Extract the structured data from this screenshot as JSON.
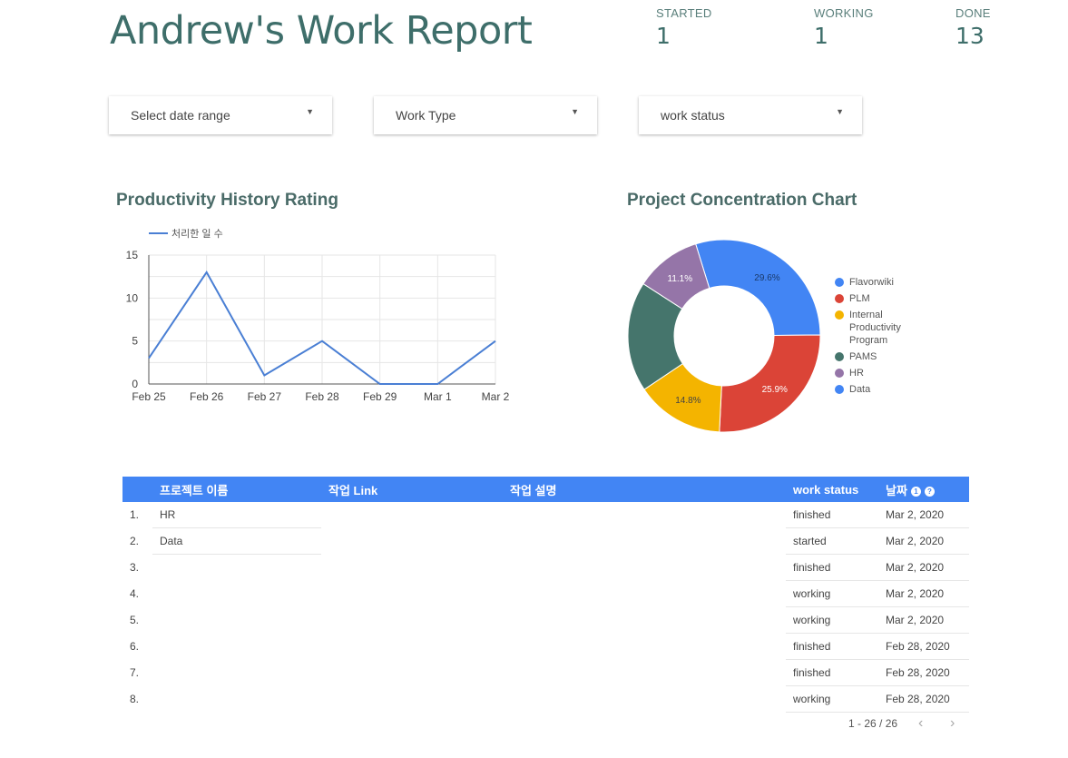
{
  "header": {
    "title": "Andrew's Work Report"
  },
  "kpis": [
    {
      "label": "STARTED",
      "value": "1"
    },
    {
      "label": "WORKING",
      "value": "1"
    },
    {
      "label": "DONE",
      "value": "13"
    }
  ],
  "filters": {
    "date_range": "Select date range",
    "work_type": "Work Type",
    "work_status": "work status",
    "caret": "▼"
  },
  "line_section": {
    "title": "Productivity History Rating"
  },
  "pie_section": {
    "title": "Project Concentration Chart"
  },
  "chart_data": [
    {
      "type": "line",
      "title": "Productivity History Rating",
      "x": [
        "Feb 25",
        "Feb 26",
        "Feb 27",
        "Feb 28",
        "Feb 29",
        "Mar 1",
        "Mar 2"
      ],
      "series": [
        {
          "name": "처리한 일 수",
          "values": [
            3,
            13,
            1,
            5,
            0,
            0,
            5
          ],
          "color": "#4a7fd4"
        }
      ],
      "ylim": [
        0,
        15
      ],
      "yticks": [
        0,
        5,
        10,
        15
      ],
      "grid": true,
      "legend": "top-left"
    },
    {
      "type": "pie",
      "title": "Project Concentration Chart",
      "donut": true,
      "slices": [
        {
          "name": "Flavorwiki",
          "value": 29.6,
          "label": "29.6%",
          "color": "#4285f4"
        },
        {
          "name": "PLM",
          "value": 25.9,
          "label": "25.9%",
          "color": "#db4437"
        },
        {
          "name": "Internal Productivity Program",
          "value": 14.8,
          "label": "14.8%",
          "color": "#f4b400"
        },
        {
          "name": "PAMS",
          "value": 18.5,
          "label": "",
          "color": "#45756c"
        },
        {
          "name": "HR",
          "value": 11.1,
          "label": "11.1%",
          "color": "#9575a8"
        }
      ],
      "legend_entries": [
        {
          "name": "Flavorwiki",
          "color": "#4285f4"
        },
        {
          "name": "PLM",
          "color": "#db4437"
        },
        {
          "name": "Internal Productivity Program",
          "color": "#f4b400"
        },
        {
          "name": "PAMS",
          "color": "#45756c"
        },
        {
          "name": "HR",
          "color": "#9575a8"
        },
        {
          "name": "Data",
          "color": "#4285f4"
        }
      ],
      "legend": "right"
    }
  ],
  "table": {
    "headers": {
      "project": "프로젝트 이름",
      "link": "작업 Link",
      "desc": "작업 설명",
      "status": "work status",
      "date": "날짜",
      "icon1": "1",
      "icon2": "?"
    },
    "rows": [
      {
        "num": "1.",
        "project": "HR",
        "status": "finished",
        "date": "Mar 2, 2020"
      },
      {
        "num": "2.",
        "project": "Data",
        "status": "started",
        "date": "Mar 2, 2020"
      },
      {
        "num": "3.",
        "project": "",
        "status": "finished",
        "date": "Mar 2, 2020"
      },
      {
        "num": "4.",
        "project": "",
        "status": "working",
        "date": "Mar 2, 2020"
      },
      {
        "num": "5.",
        "project": "",
        "status": "working",
        "date": "Mar 2, 2020"
      },
      {
        "num": "6.",
        "project": "",
        "status": "finished",
        "date": "Feb 28, 2020"
      },
      {
        "num": "7.",
        "project": "",
        "status": "finished",
        "date": "Feb 28, 2020"
      },
      {
        "num": "8.",
        "project": "",
        "status": "working",
        "date": "Feb 28, 2020"
      }
    ]
  },
  "pagination": {
    "text": "1 - 26 / 26",
    "prev": "‹",
    "next": "›"
  },
  "colors": {
    "accent": "#4285f4",
    "title": "#3e6e6a"
  }
}
